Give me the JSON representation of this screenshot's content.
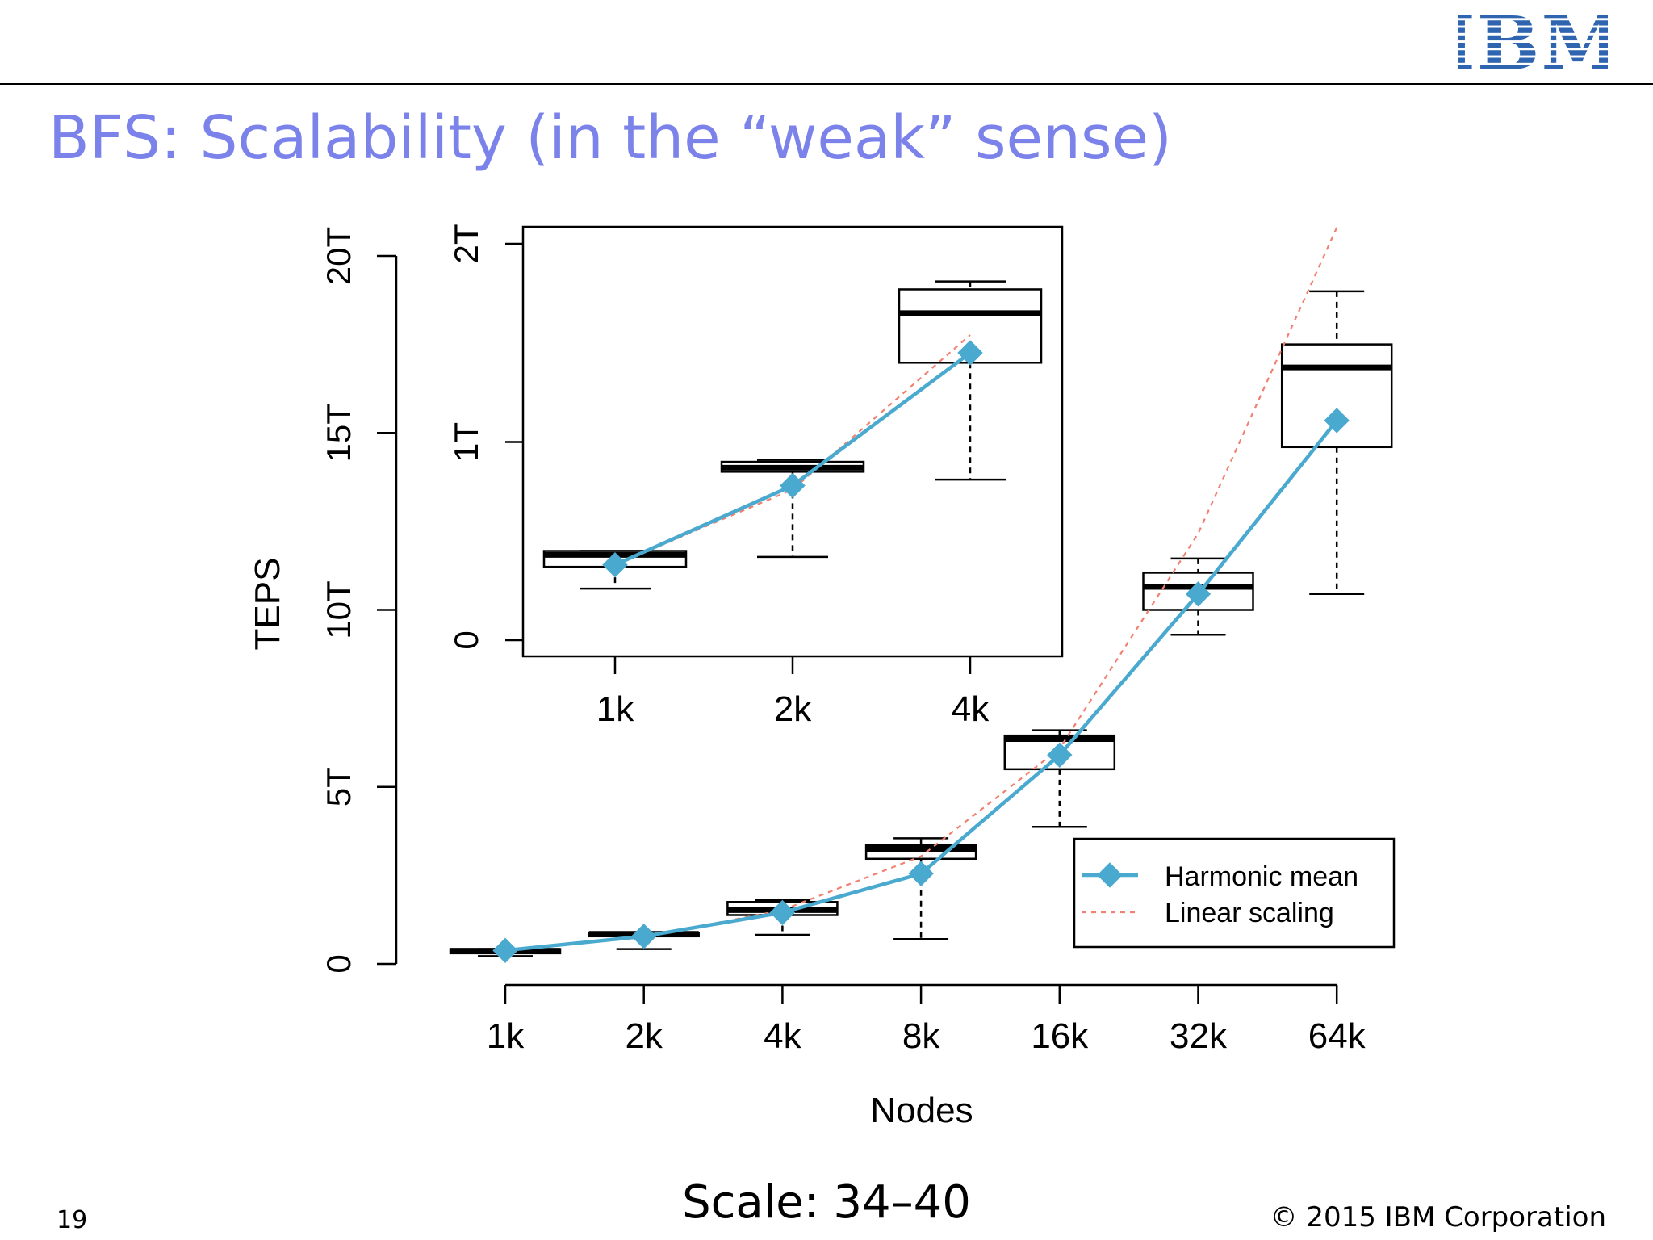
{
  "header": {
    "logo_text": "IBM"
  },
  "slide": {
    "title": "BFS: Scalability (in the “weak” sense)",
    "caption": "Scale:  34–40",
    "page_number": "19",
    "copyright": "© 2015 IBM Corporation"
  },
  "colors": {
    "title": "#7b83eb",
    "logo": "#2e64b0",
    "harmonic": "#4aa9cf",
    "linear": "#f08070"
  },
  "chart_data": [
    {
      "type": "box",
      "xlabel": "Nodes",
      "ylabel": "TEPS",
      "categories": [
        "1k",
        "2k",
        "4k",
        "8k",
        "16k",
        "32k",
        "64k"
      ],
      "yticks": [
        0,
        5,
        10,
        15,
        20
      ],
      "ytick_labels": [
        "0",
        "5T",
        "10T",
        "15T",
        "20T"
      ],
      "ylim": [
        0,
        20
      ],
      "boxes": [
        {
          "min": 0.22,
          "q1": 0.3,
          "median": 0.37,
          "q3": 0.42,
          "max": 0.42
        },
        {
          "min": 0.42,
          "q1": 0.78,
          "median": 0.85,
          "q3": 0.87,
          "max": 0.88
        },
        {
          "min": 0.82,
          "q1": 1.38,
          "median": 1.52,
          "q3": 1.75,
          "max": 1.8
        },
        {
          "min": 0.7,
          "q1": 2.97,
          "median": 3.25,
          "q3": 3.35,
          "max": 3.55
        },
        {
          "min": 3.87,
          "q1": 5.5,
          "median": 6.35,
          "q3": 6.45,
          "max": 6.6
        },
        {
          "min": 9.3,
          "q1": 10.0,
          "median": 10.65,
          "q3": 11.05,
          "max": 11.45
        },
        {
          "min": 10.45,
          "q1": 14.6,
          "median": 16.85,
          "q3": 17.5,
          "max": 19.0
        }
      ],
      "series": [
        {
          "name": "Harmonic mean",
          "values": [
            0.38,
            0.78,
            1.45,
            2.55,
            5.9,
            10.45,
            15.35
          ]
        },
        {
          "name": "Linear scaling",
          "values": [
            0.38,
            0.76,
            1.52,
            3.04,
            6.08,
            12.16,
            20.8
          ]
        }
      ],
      "legend": {
        "entries": [
          "Harmonic mean",
          "Linear scaling"
        ],
        "position": "bottom-right"
      }
    },
    {
      "type": "box",
      "inset": true,
      "categories": [
        "1k",
        "2k",
        "4k"
      ],
      "yticks": [
        0,
        1,
        2
      ],
      "ytick_labels": [
        "0",
        "1T",
        "2T"
      ],
      "ylim": [
        -0.08,
        2.1
      ],
      "boxes": [
        {
          "min": 0.26,
          "q1": 0.37,
          "median": 0.43,
          "q3": 0.45,
          "max": 0.45
        },
        {
          "min": 0.42,
          "q1": 0.85,
          "median": 0.87,
          "q3": 0.9,
          "max": 0.91
        },
        {
          "min": 0.81,
          "q1": 1.4,
          "median": 1.65,
          "q3": 1.77,
          "max": 1.81
        }
      ],
      "series": [
        {
          "name": "Harmonic mean",
          "values": [
            0.38,
            0.78,
            1.45
          ]
        },
        {
          "name": "Linear scaling",
          "values": [
            0.38,
            0.76,
            1.54
          ]
        }
      ]
    }
  ]
}
